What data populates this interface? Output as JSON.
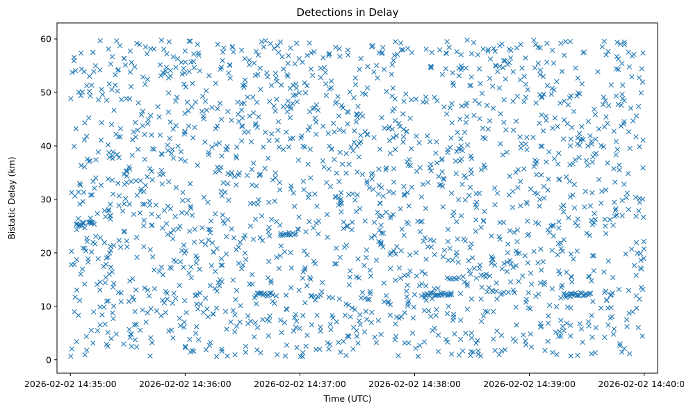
{
  "chart_data": {
    "type": "scatter",
    "title": "Detections in Delay",
    "xlabel": "Time (UTC)",
    "ylabel": "Bistatic Delay (km)",
    "marker": "x",
    "color": "#1f77b4",
    "grid": false,
    "xlim": [
      "2026-02-02 14:34:53",
      "2026-02-02 14:40:07"
    ],
    "ylim": [
      -2.5,
      63
    ],
    "x_ticks": [
      "2026-02-02 14:35:00",
      "2026-02-02 14:36:00",
      "2026-02-02 14:37:00",
      "2026-02-02 14:38:00",
      "2026-02-02 14:39:00",
      "2026-02-02 14:40:00"
    ],
    "y_ticks": [
      0,
      10,
      20,
      30,
      40,
      50,
      60
    ],
    "points_generated": {
      "count": 1900,
      "x_range": [
        "2026-02-02 14:35:00",
        "2026-02-02 14:40:00"
      ],
      "y_range": [
        0.6,
        59.8
      ]
    },
    "clusters": [
      {
        "x_center": "2026-02-02 14:35:05",
        "y_center": 25.3,
        "x_span_s": 4,
        "count": 8
      },
      {
        "x_center": "2026-02-02 14:35:11",
        "y_center": 25.5,
        "x_span_s": 3,
        "count": 6
      },
      {
        "x_center": "2026-02-02 14:36:41",
        "y_center": 12.2,
        "x_span_s": 8,
        "count": 12
      },
      {
        "x_center": "2026-02-02 14:36:54",
        "y_center": 23.6,
        "x_span_s": 8,
        "count": 10
      },
      {
        "x_center": "2026-02-02 14:38:12",
        "y_center": 12.3,
        "x_span_s": 14,
        "count": 22
      },
      {
        "x_center": "2026-02-02 14:39:25",
        "y_center": 12.3,
        "x_span_s": 14,
        "count": 22
      },
      {
        "x_center": "2026-02-02 14:38:20",
        "y_center": 15.2,
        "x_span_s": 6,
        "count": 6
      }
    ]
  }
}
